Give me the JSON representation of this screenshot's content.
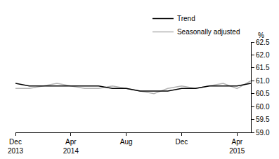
{
  "chart_data": {
    "type": "line",
    "y_label": "%",
    "categories": [
      "Dec 2013",
      null,
      null,
      null,
      "Apr 2014",
      null,
      null,
      null,
      "Aug",
      null,
      null,
      null,
      "Dec",
      null,
      null,
      null,
      "Apr 2015",
      null
    ],
    "series": [
      {
        "name": "Trend",
        "color": "#000000",
        "values": [
          60.9,
          60.8,
          60.8,
          60.8,
          60.8,
          60.8,
          60.8,
          60.7,
          60.7,
          60.6,
          60.6,
          60.6,
          60.7,
          60.7,
          60.8,
          60.8,
          60.8,
          60.9
        ]
      },
      {
        "name": "Seasonally adjusted",
        "color": "#b3b3b3",
        "values": [
          60.7,
          60.7,
          60.8,
          60.9,
          60.8,
          60.7,
          60.7,
          60.8,
          60.7,
          60.6,
          60.5,
          60.7,
          60.8,
          60.7,
          60.8,
          60.9,
          60.7,
          61.0
        ]
      }
    ],
    "ylim": [
      59.0,
      62.5
    ],
    "yticks": [
      {
        "value": 59.0,
        "label": "59.0"
      },
      {
        "value": 59.5,
        "label": "59.5"
      },
      {
        "value": 60.0,
        "label": "60.0"
      },
      {
        "value": 60.5,
        "label": "60.5"
      },
      {
        "value": 61.0,
        "label": "61.0"
      },
      {
        "value": 61.5,
        "label": "61.5"
      },
      {
        "value": 62.0,
        "label": "62.0"
      },
      {
        "value": 62.5,
        "label": "62.5"
      }
    ],
    "grid": false,
    "legend": "top right"
  }
}
